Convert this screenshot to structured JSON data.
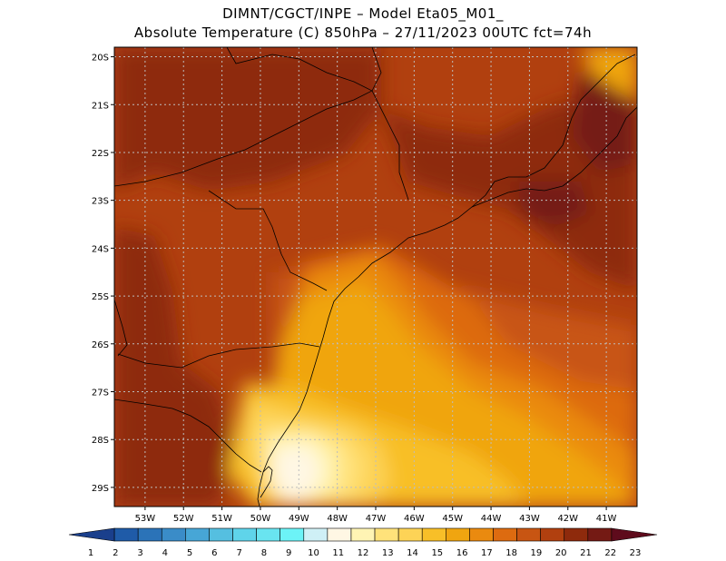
{
  "header": {
    "line1": "DIMNT/CGCT/INPE –  Model Eta05_M01_",
    "line2": "Absolute Temperature (C) 850hPa –  27/11/2023 00UTC fct=74h"
  },
  "map": {
    "lat_labels": [
      "20S",
      "21S",
      "22S",
      "23S",
      "24S",
      "25S",
      "26S",
      "27S",
      "28S",
      "29S"
    ],
    "lon_labels": [
      "53W",
      "52W",
      "51W",
      "50W",
      "49W",
      "48W",
      "47W",
      "46W",
      "45W",
      "44W",
      "43W",
      "42W",
      "41W"
    ],
    "lat_range": [
      -29.4,
      -19.8
    ],
    "lon_range": [
      -53.8,
      -40.2
    ],
    "grid": "dotted"
  },
  "colorbar": {
    "labels": [
      "1",
      "2",
      "3",
      "4",
      "5",
      "6",
      "7",
      "8",
      "9",
      "10",
      "11",
      "12",
      "13",
      "14",
      "15",
      "16",
      "17",
      "18",
      "19",
      "20",
      "21",
      "22",
      "23"
    ],
    "colors": [
      "#1a3f8c",
      "#1f5ba8",
      "#2b73b8",
      "#3a8cc8",
      "#47a6d6",
      "#55bfe0",
      "#5fd4ea",
      "#69e4f0",
      "#6cf3f7",
      "#cff0f6",
      "#fff7e4",
      "#fff4b4",
      "#ffe27a",
      "#fdd356",
      "#f8bf28",
      "#f0a510",
      "#ea8a0f",
      "#dd6b10",
      "#c85512",
      "#b1400f",
      "#8e2a0c",
      "#741a14",
      "#5e0b1c"
    ]
  },
  "legend_colors": {
    "land_outline": "#000000",
    "grid_line": "#bdbdbd"
  }
}
